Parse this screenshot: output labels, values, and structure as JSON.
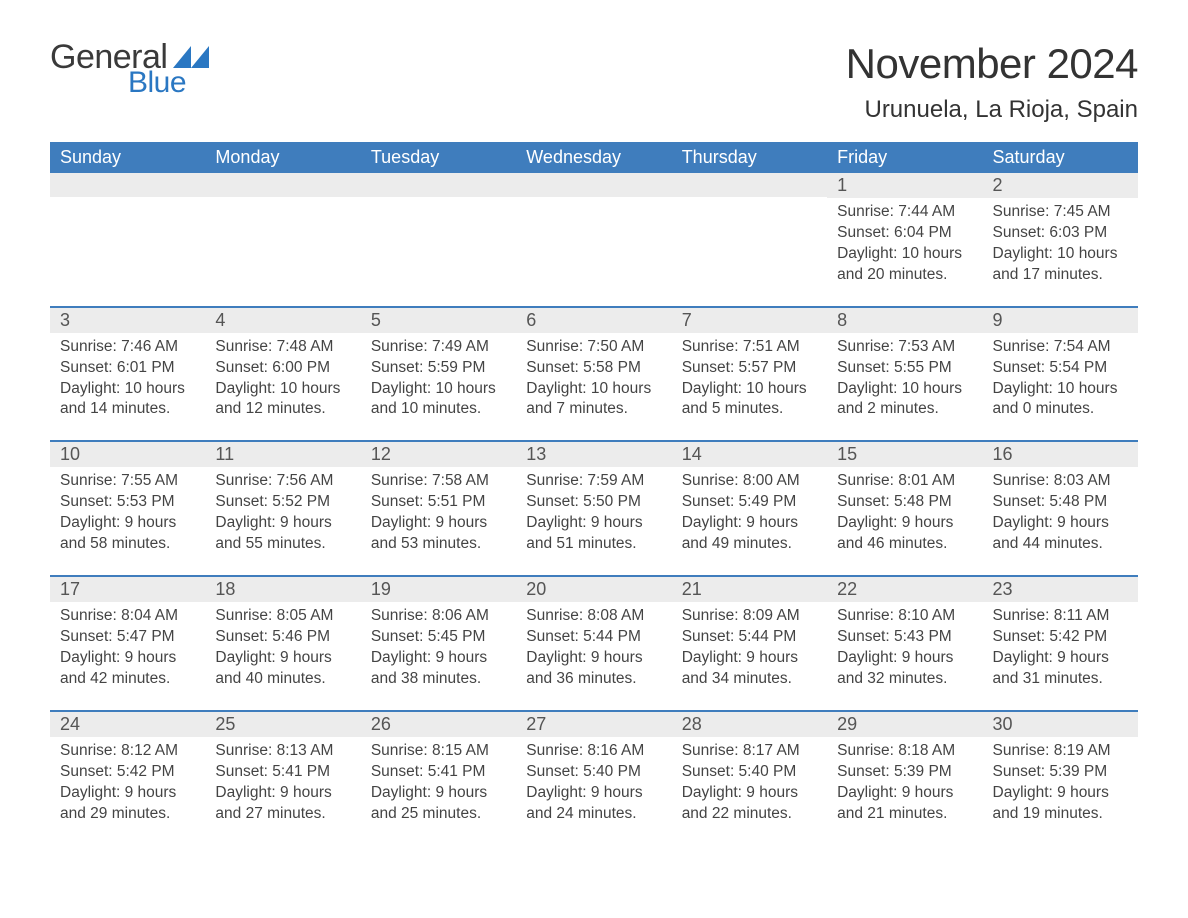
{
  "logo": {
    "text1": "General",
    "text2": "Blue",
    "tri_color": "#2a77c2"
  },
  "title": "November 2024",
  "location": "Urunuela, La Rioja, Spain",
  "colors": {
    "header_bg": "#3f7dbd",
    "header_text": "#ffffff",
    "daynum_bg": "#ececec",
    "row_border": "#3f7dbd",
    "body_text": "#444444"
  },
  "fonts": {
    "title_pt": 42,
    "location_pt": 24,
    "dow_pt": 18,
    "daynum_pt": 18,
    "body_pt": 15.5
  },
  "days_of_week": [
    "Sunday",
    "Monday",
    "Tuesday",
    "Wednesday",
    "Thursday",
    "Friday",
    "Saturday"
  ],
  "weeks": [
    [
      {
        "n": "",
        "sunrise": "",
        "sunset": "",
        "daylight": ""
      },
      {
        "n": "",
        "sunrise": "",
        "sunset": "",
        "daylight": ""
      },
      {
        "n": "",
        "sunrise": "",
        "sunset": "",
        "daylight": ""
      },
      {
        "n": "",
        "sunrise": "",
        "sunset": "",
        "daylight": ""
      },
      {
        "n": "",
        "sunrise": "",
        "sunset": "",
        "daylight": ""
      },
      {
        "n": "1",
        "sunrise": "7:44 AM",
        "sunset": "6:04 PM",
        "daylight": "10 hours and 20 minutes."
      },
      {
        "n": "2",
        "sunrise": "7:45 AM",
        "sunset": "6:03 PM",
        "daylight": "10 hours and 17 minutes."
      }
    ],
    [
      {
        "n": "3",
        "sunrise": "7:46 AM",
        "sunset": "6:01 PM",
        "daylight": "10 hours and 14 minutes."
      },
      {
        "n": "4",
        "sunrise": "7:48 AM",
        "sunset": "6:00 PM",
        "daylight": "10 hours and 12 minutes."
      },
      {
        "n": "5",
        "sunrise": "7:49 AM",
        "sunset": "5:59 PM",
        "daylight": "10 hours and 10 minutes."
      },
      {
        "n": "6",
        "sunrise": "7:50 AM",
        "sunset": "5:58 PM",
        "daylight": "10 hours and 7 minutes."
      },
      {
        "n": "7",
        "sunrise": "7:51 AM",
        "sunset": "5:57 PM",
        "daylight": "10 hours and 5 minutes."
      },
      {
        "n": "8",
        "sunrise": "7:53 AM",
        "sunset": "5:55 PM",
        "daylight": "10 hours and 2 minutes."
      },
      {
        "n": "9",
        "sunrise": "7:54 AM",
        "sunset": "5:54 PM",
        "daylight": "10 hours and 0 minutes."
      }
    ],
    [
      {
        "n": "10",
        "sunrise": "7:55 AM",
        "sunset": "5:53 PM",
        "daylight": "9 hours and 58 minutes."
      },
      {
        "n": "11",
        "sunrise": "7:56 AM",
        "sunset": "5:52 PM",
        "daylight": "9 hours and 55 minutes."
      },
      {
        "n": "12",
        "sunrise": "7:58 AM",
        "sunset": "5:51 PM",
        "daylight": "9 hours and 53 minutes."
      },
      {
        "n": "13",
        "sunrise": "7:59 AM",
        "sunset": "5:50 PM",
        "daylight": "9 hours and 51 minutes."
      },
      {
        "n": "14",
        "sunrise": "8:00 AM",
        "sunset": "5:49 PM",
        "daylight": "9 hours and 49 minutes."
      },
      {
        "n": "15",
        "sunrise": "8:01 AM",
        "sunset": "5:48 PM",
        "daylight": "9 hours and 46 minutes."
      },
      {
        "n": "16",
        "sunrise": "8:03 AM",
        "sunset": "5:48 PM",
        "daylight": "9 hours and 44 minutes."
      }
    ],
    [
      {
        "n": "17",
        "sunrise": "8:04 AM",
        "sunset": "5:47 PM",
        "daylight": "9 hours and 42 minutes."
      },
      {
        "n": "18",
        "sunrise": "8:05 AM",
        "sunset": "5:46 PM",
        "daylight": "9 hours and 40 minutes."
      },
      {
        "n": "19",
        "sunrise": "8:06 AM",
        "sunset": "5:45 PM",
        "daylight": "9 hours and 38 minutes."
      },
      {
        "n": "20",
        "sunrise": "8:08 AM",
        "sunset": "5:44 PM",
        "daylight": "9 hours and 36 minutes."
      },
      {
        "n": "21",
        "sunrise": "8:09 AM",
        "sunset": "5:44 PM",
        "daylight": "9 hours and 34 minutes."
      },
      {
        "n": "22",
        "sunrise": "8:10 AM",
        "sunset": "5:43 PM",
        "daylight": "9 hours and 32 minutes."
      },
      {
        "n": "23",
        "sunrise": "8:11 AM",
        "sunset": "5:42 PM",
        "daylight": "9 hours and 31 minutes."
      }
    ],
    [
      {
        "n": "24",
        "sunrise": "8:12 AM",
        "sunset": "5:42 PM",
        "daylight": "9 hours and 29 minutes."
      },
      {
        "n": "25",
        "sunrise": "8:13 AM",
        "sunset": "5:41 PM",
        "daylight": "9 hours and 27 minutes."
      },
      {
        "n": "26",
        "sunrise": "8:15 AM",
        "sunset": "5:41 PM",
        "daylight": "9 hours and 25 minutes."
      },
      {
        "n": "27",
        "sunrise": "8:16 AM",
        "sunset": "5:40 PM",
        "daylight": "9 hours and 24 minutes."
      },
      {
        "n": "28",
        "sunrise": "8:17 AM",
        "sunset": "5:40 PM",
        "daylight": "9 hours and 22 minutes."
      },
      {
        "n": "29",
        "sunrise": "8:18 AM",
        "sunset": "5:39 PM",
        "daylight": "9 hours and 21 minutes."
      },
      {
        "n": "30",
        "sunrise": "8:19 AM",
        "sunset": "5:39 PM",
        "daylight": "9 hours and 19 minutes."
      }
    ]
  ],
  "labels": {
    "sunrise": "Sunrise: ",
    "sunset": "Sunset: ",
    "daylight": "Daylight: "
  }
}
